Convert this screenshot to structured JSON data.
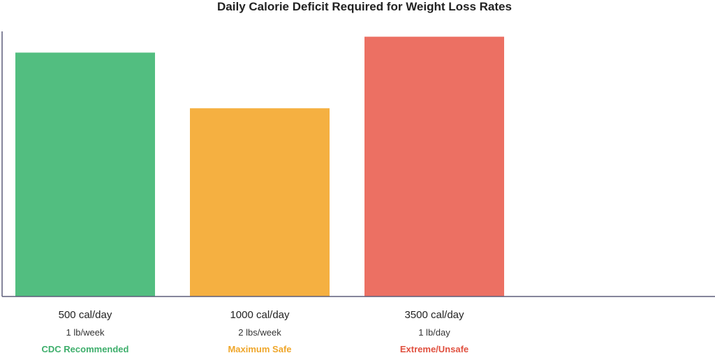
{
  "chart_data": {
    "type": "bar",
    "title": "Daily Calorie Deficit Required for Weight Loss Rates",
    "xlabel": "",
    "ylabel": "",
    "grid": false,
    "y_axis_ticks_shown": false,
    "categories": [
      "500 cal/day",
      "1000 cal/day",
      "3500 cal/day"
    ],
    "values": [
      500,
      1000,
      3500
    ],
    "bar_levels": [
      0.92,
      0.71,
      0.98
    ],
    "rates": [
      "1 lb/week",
      "2 lbs/week",
      "1 lb/day"
    ],
    "annotations": [
      "CDC Recommended",
      "Maximum Safe",
      "Extreme/Unsafe"
    ],
    "colors": [
      "#52BE80",
      "#F5B041",
      "#EC7063"
    ],
    "annotation_colors": [
      "#3DAE6B",
      "#EFA62A",
      "#E0503F"
    ],
    "axis_color": "#5D5D7A"
  }
}
